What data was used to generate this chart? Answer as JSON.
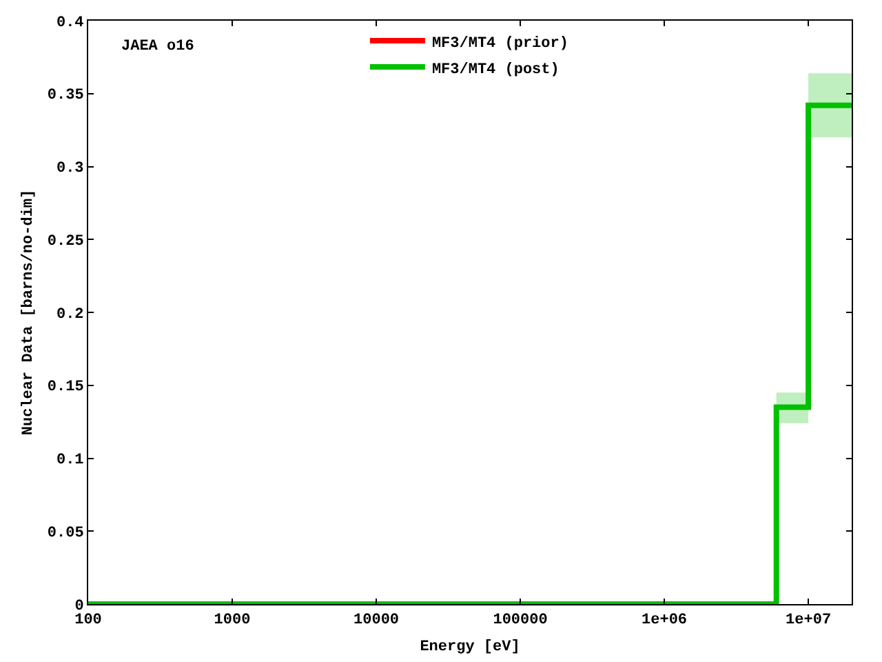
{
  "chart_data": {
    "type": "step",
    "annotations": [
      "JAEA o16"
    ],
    "xlabel": "Energy [eV]",
    "ylabel": "Nuclear Data [barns/no-dim]",
    "x": [
      100,
      6000000,
      10000000,
      20000000
    ],
    "series": [
      {
        "name": "MF3/MT4 (prior)",
        "color": "#ff0000",
        "values": [
          null,
          null,
          null,
          null
        ]
      },
      {
        "name": "MF3/MT4 (post)",
        "color": "#00c000",
        "values": [
          0,
          0.135,
          0.342,
          0.342
        ],
        "lower": [
          0,
          0.124,
          0.32,
          0.32
        ],
        "upper": [
          0,
          0.145,
          0.364,
          0.364
        ]
      }
    ],
    "xlim": [
      100,
      20000000
    ],
    "xticks": [
      100,
      1000,
      10000,
      100000,
      {
        "value": 1000000,
        "label": "1e+06"
      },
      {
        "value": 10000000,
        "label": "1e+07"
      }
    ],
    "ylim": [
      0,
      0.4
    ],
    "yticks": [
      0,
      0.05,
      0.1,
      0.15,
      0.2,
      0.25,
      0.3,
      0.35,
      0.4
    ],
    "log": "x",
    "grid": false,
    "legend": "top",
    "marker": "none",
    "line_style": "solid"
  }
}
